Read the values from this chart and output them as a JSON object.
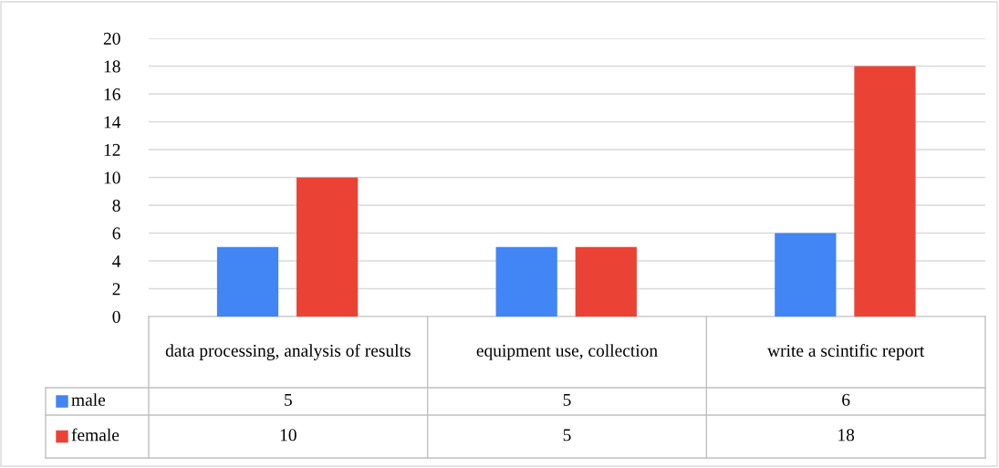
{
  "chart_data": {
    "type": "bar",
    "categories": [
      "data processing, analysis of results",
      "equipment use, collection",
      "write a scintific report"
    ],
    "series": [
      {
        "name": "male",
        "color": "#4285f4",
        "values": [
          5,
          5,
          6
        ]
      },
      {
        "name": "female",
        "color": "#ea4335",
        "values": [
          10,
          5,
          18
        ]
      }
    ],
    "ylim": [
      0,
      20
    ],
    "yticks": [
      0,
      2,
      4,
      6,
      8,
      10,
      12,
      14,
      16,
      18,
      20
    ],
    "grid": "y",
    "legend": "bottom",
    "data_labels": true
  }
}
